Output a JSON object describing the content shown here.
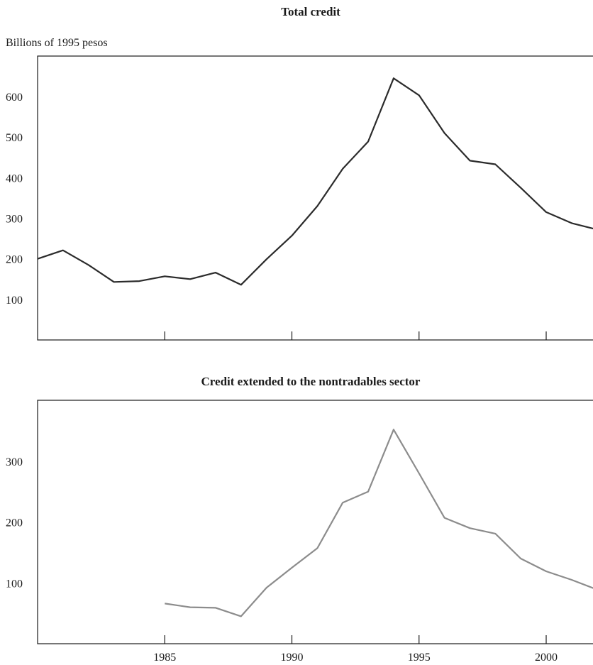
{
  "chart_data": [
    {
      "type": "line",
      "title": "Total credit",
      "ylabel": "Billions of 1995 pesos",
      "xlabel": "",
      "xlim": [
        1980,
        2002
      ],
      "ylim": [
        0,
        690
      ],
      "yticks": [
        100,
        200,
        300,
        400,
        500,
        600
      ],
      "xticks": [
        1985,
        1990,
        1995,
        2000
      ],
      "xtick_labels_shown": false,
      "grid": false,
      "series": [
        {
          "color": "#2b2b2b",
          "x": [
            1980,
            1981,
            1982,
            1983,
            1984,
            1985,
            1986,
            1987,
            1988,
            1989,
            1990,
            1991,
            1992,
            1993,
            1994,
            1995,
            1996,
            1997,
            1998,
            1999,
            2000,
            2001,
            2002
          ],
          "y": [
            200,
            221,
            185,
            143,
            145,
            157,
            150,
            166,
            136,
            199,
            257,
            330,
            422,
            489,
            645,
            603,
            510,
            442,
            433,
            375,
            315,
            288,
            272
          ]
        }
      ]
    },
    {
      "type": "line",
      "title": "Credit extended to the nontradables sector",
      "ylabel": "",
      "xlabel": "",
      "xlim": [
        1980,
        2002
      ],
      "ylim": [
        0,
        400
      ],
      "yticks": [
        100,
        200,
        300
      ],
      "xticks": [
        1985,
        1990,
        1995,
        2000
      ],
      "grid": false,
      "series": [
        {
          "color": "#8c8c8c",
          "x": [
            1985,
            1986,
            1987,
            1988,
            1989,
            1990,
            1991,
            1992,
            1993,
            1994,
            1995,
            1996,
            1997,
            1998,
            1999,
            2000,
            2001,
            2002
          ],
          "y": [
            66,
            60,
            59,
            45,
            92,
            125,
            157,
            232,
            250,
            352,
            280,
            207,
            190,
            181,
            140,
            119,
            105,
            89
          ]
        }
      ]
    }
  ]
}
